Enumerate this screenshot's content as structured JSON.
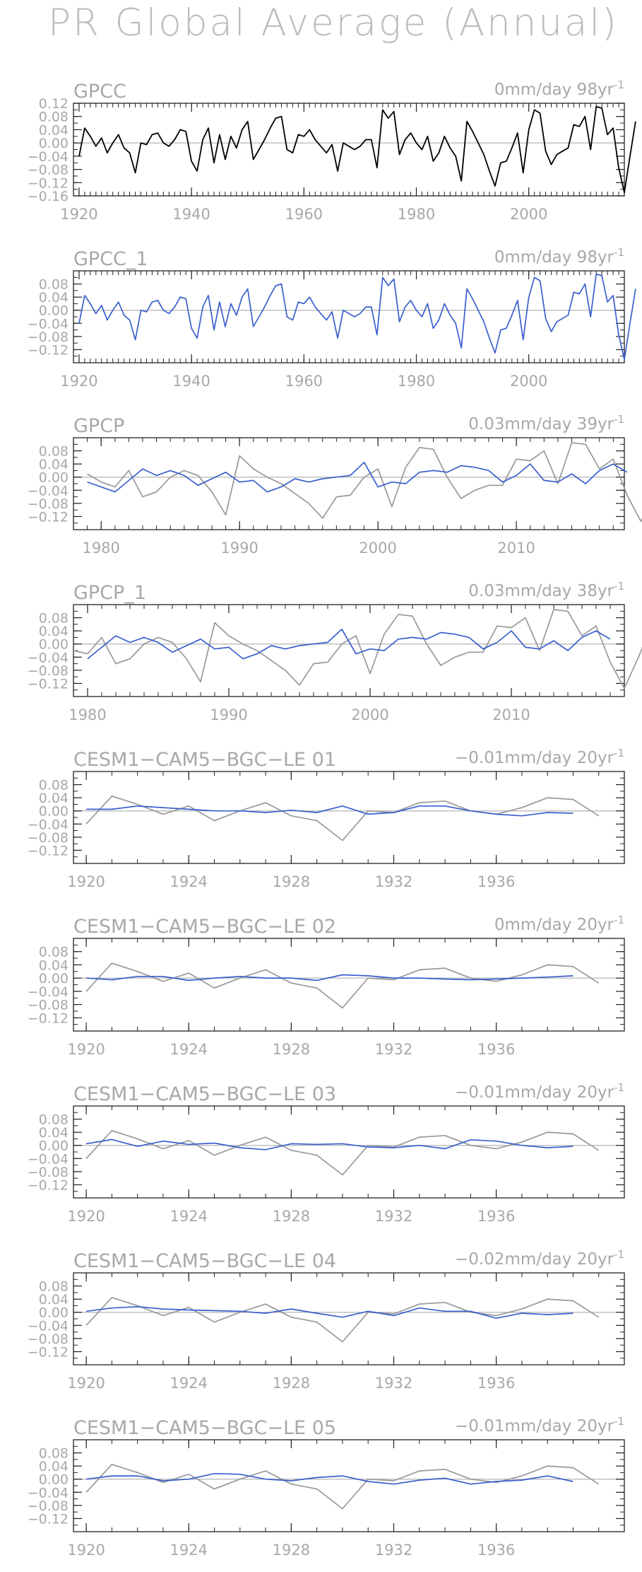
{
  "page": {
    "title": "PR Global Average (Annual)"
  },
  "chart_data": [
    {
      "type": "line",
      "title": "GPCC",
      "trend_label": "0mm/day 98yr",
      "trend_exp": "-1",
      "xlim": [
        1919,
        2017
      ],
      "ylim": [
        -0.16,
        0.12
      ],
      "xticks": [
        1920,
        1940,
        1960,
        1980,
        2000
      ],
      "yticks": [
        -0.16,
        -0.12,
        -0.08,
        -0.04,
        0.0,
        0.04,
        0.08,
        0.12
      ],
      "ytick_labels": [
        "−0.16",
        "−0.12",
        "−0.08",
        "−0.04",
        "0.00",
        "0.04",
        "0.08",
        "0.12"
      ],
      "series": [
        {
          "color": "#000000",
          "x_start": 1920,
          "values": [
            -0.04,
            0.045,
            0.02,
            -0.01,
            0.015,
            -0.03,
            0.0,
            0.025,
            -0.015,
            -0.03,
            -0.09,
            0.0,
            -0.005,
            0.025,
            0.03,
            0.0,
            -0.01,
            0.01,
            0.04,
            0.035,
            -0.055,
            -0.085,
            0.01,
            0.045,
            -0.06,
            0.025,
            -0.05,
            0.02,
            -0.015,
            0.04,
            0.065,
            -0.05,
            -0.02,
            0.01,
            0.045,
            0.075,
            0.08,
            -0.02,
            -0.03,
            0.025,
            0.02,
            0.04,
            0.01,
            -0.01,
            -0.03,
            -0.005,
            -0.085,
            0.0,
            -0.01,
            -0.02,
            -0.01,
            0.01,
            0.01,
            -0.075,
            0.1,
            0.075,
            0.095,
            -0.035,
            0.01,
            0.03,
            0.0,
            -0.02,
            0.02,
            -0.055,
            -0.03,
            0.02,
            -0.015,
            -0.04,
            -0.115,
            0.065,
            0.035,
            0.0,
            -0.035,
            -0.085,
            -0.13,
            -0.06,
            -0.055,
            -0.015,
            0.03,
            -0.09,
            0.04,
            0.1,
            0.09,
            -0.025,
            -0.065,
            -0.035,
            -0.025,
            -0.015,
            0.055,
            0.05,
            0.08,
            -0.02,
            0.11,
            0.105,
            0.025,
            0.045,
            -0.075,
            -0.15,
            -0.04,
            0.065
          ]
        }
      ]
    },
    {
      "type": "line",
      "title": "GPCC_1",
      "trend_label": "0mm/day 98yr",
      "trend_exp": "-1",
      "xlim": [
        1919,
        2017
      ],
      "ylim": [
        -0.16,
        0.12
      ],
      "xticks": [
        1920,
        1940,
        1960,
        1980,
        2000
      ],
      "yticks": [
        -0.12,
        -0.08,
        -0.04,
        0.0,
        0.04,
        0.08
      ],
      "ytick_labels": [
        "−0.12",
        "−0.08",
        "−0.04",
        "0.00",
        "0.04",
        "0.08"
      ],
      "series": [
        {
          "color": "#3a5fcd",
          "x_start": 1920,
          "values": [
            -0.04,
            0.045,
            0.02,
            -0.01,
            0.015,
            -0.03,
            0.0,
            0.025,
            -0.015,
            -0.03,
            -0.09,
            0.0,
            -0.005,
            0.025,
            0.03,
            0.0,
            -0.01,
            0.01,
            0.04,
            0.035,
            -0.055,
            -0.085,
            0.01,
            0.045,
            -0.06,
            0.025,
            -0.05,
            0.02,
            -0.015,
            0.04,
            0.065,
            -0.05,
            -0.02,
            0.01,
            0.045,
            0.075,
            0.08,
            -0.02,
            -0.03,
            0.025,
            0.02,
            0.04,
            0.01,
            -0.01,
            -0.03,
            -0.005,
            -0.085,
            0.0,
            -0.01,
            -0.02,
            -0.01,
            0.01,
            0.01,
            -0.075,
            0.1,
            0.075,
            0.095,
            -0.035,
            0.01,
            0.03,
            0.0,
            -0.02,
            0.02,
            -0.055,
            -0.03,
            0.02,
            -0.015,
            -0.04,
            -0.115,
            0.065,
            0.035,
            0.0,
            -0.035,
            -0.085,
            -0.13,
            -0.06,
            -0.055,
            -0.015,
            0.03,
            -0.09,
            0.04,
            0.1,
            0.09,
            -0.025,
            -0.065,
            -0.035,
            -0.025,
            -0.015,
            0.055,
            0.05,
            0.08,
            -0.02,
            0.11,
            0.105,
            0.025,
            0.045,
            -0.075,
            -0.15,
            -0.04,
            0.065
          ]
        }
      ]
    },
    {
      "type": "line",
      "title": "GPCP",
      "trend_label": "0.03mm/day 39yr",
      "trend_exp": "-1",
      "xlim": [
        1978,
        2017.8
      ],
      "ylim": [
        -0.16,
        0.12
      ],
      "xticks": [
        1980,
        1990,
        2000,
        2010
      ],
      "yticks": [
        -0.12,
        -0.08,
        -0.04,
        0.0,
        0.04,
        0.08
      ],
      "ytick_labels": [
        "−0.12",
        "−0.08",
        "−0.04",
        "0.00",
        "0.04",
        "0.08"
      ],
      "series": [
        {
          "color": "#999999",
          "x_start": 1979,
          "values": [
            0.01,
            -0.015,
            -0.03,
            0.02,
            -0.06,
            -0.045,
            0.0,
            0.02,
            0.005,
            -0.045,
            -0.115,
            0.065,
            0.025,
            0.0,
            -0.02,
            -0.05,
            -0.08,
            -0.125,
            -0.06,
            -0.055,
            0.0,
            0.025,
            -0.09,
            0.03,
            0.09,
            0.085,
            0.0,
            -0.065,
            -0.04,
            -0.025,
            -0.025,
            0.055,
            0.05,
            0.08,
            -0.02,
            0.105,
            0.1,
            0.025,
            0.055,
            -0.055,
            -0.135,
            -0.04,
            0.065
          ]
        },
        {
          "color": "#3a5fcd",
          "x_start": 1979,
          "values": [
            -0.015,
            -0.03,
            -0.045,
            -0.01,
            0.025,
            0.005,
            0.02,
            0.005,
            -0.025,
            -0.005,
            0.015,
            -0.015,
            -0.01,
            -0.045,
            -0.03,
            -0.005,
            -0.015,
            -0.005,
            0.0,
            0.005,
            0.045,
            -0.03,
            -0.015,
            -0.02,
            0.015,
            0.02,
            0.015,
            0.035,
            0.03,
            0.02,
            -0.015,
            0.005,
            0.04,
            -0.01,
            -0.015,
            0.01,
            -0.02,
            0.02,
            0.04,
            0.015
          ]
        }
      ]
    },
    {
      "type": "line",
      "title": "GPCP_1",
      "trend_label": "0.03mm/day 38yr",
      "trend_exp": "-1",
      "xlim": [
        1979,
        2018
      ],
      "ylim": [
        -0.16,
        0.12
      ],
      "xticks": [
        1980,
        1990,
        2000,
        2010
      ],
      "yticks": [
        -0.12,
        -0.08,
        -0.04,
        0.0,
        0.04,
        0.08
      ],
      "ytick_labels": [
        "−0.12",
        "−0.08",
        "−0.04",
        "0.00",
        "0.04",
        "0.08"
      ],
      "series": [
        {
          "color": "#999999",
          "x_start": 1979,
          "values": [
            -0.02,
            -0.03,
            0.02,
            -0.06,
            -0.045,
            0.0,
            0.02,
            0.005,
            -0.045,
            -0.115,
            0.065,
            0.025,
            0.0,
            -0.02,
            -0.05,
            -0.08,
            -0.125,
            -0.06,
            -0.055,
            0.0,
            0.025,
            -0.09,
            0.03,
            0.09,
            0.085,
            0.0,
            -0.065,
            -0.04,
            -0.025,
            -0.025,
            0.055,
            0.05,
            0.08,
            -0.02,
            0.105,
            0.1,
            0.025,
            0.055,
            -0.055,
            -0.135,
            -0.04,
            0.065
          ]
        },
        {
          "color": "#3a5fcd",
          "x_start": 1980,
          "values": [
            -0.045,
            -0.01,
            0.025,
            0.005,
            0.02,
            0.005,
            -0.025,
            -0.005,
            0.015,
            -0.015,
            -0.01,
            -0.045,
            -0.03,
            -0.005,
            -0.015,
            -0.005,
            0.0,
            0.005,
            0.045,
            -0.03,
            -0.015,
            -0.02,
            0.015,
            0.02,
            0.015,
            0.035,
            0.03,
            0.02,
            -0.015,
            0.005,
            0.04,
            -0.01,
            -0.015,
            0.01,
            -0.02,
            0.02,
            0.04,
            0.015
          ]
        }
      ]
    },
    {
      "type": "line",
      "title": "CESM1−CAM5−BGC−LE 01",
      "trend_label": "−0.01mm/day 20yr",
      "trend_exp": "-1",
      "xlim": [
        1919.5,
        1941
      ],
      "ylim": [
        -0.16,
        0.12
      ],
      "xticks": [
        1920,
        1924,
        1928,
        1932,
        1936
      ],
      "yticks": [
        -0.12,
        -0.08,
        -0.04,
        0.0,
        0.04,
        0.08
      ],
      "ytick_labels": [
        "−0.12",
        "−0.08",
        "−0.04",
        "0.00",
        "0.04",
        "0.08"
      ],
      "series": [
        {
          "color": "#999999",
          "x_start": 1920,
          "values": [
            -0.04,
            0.045,
            0.02,
            -0.01,
            0.015,
            -0.03,
            0.0,
            0.025,
            -0.015,
            -0.03,
            -0.09,
            0.0,
            -0.005,
            0.025,
            0.03,
            0.0,
            -0.01,
            0.01,
            0.04,
            0.035,
            -0.015
          ]
        },
        {
          "color": "#3a5fcd",
          "x_start": 1920,
          "values": [
            0.005,
            0.005,
            0.015,
            0.01,
            0.005,
            0.0,
            0.0,
            -0.005,
            0.002,
            -0.005,
            0.015,
            -0.01,
            -0.005,
            0.015,
            0.015,
            0.0,
            -0.01,
            -0.015,
            -0.005,
            -0.007
          ]
        }
      ]
    },
    {
      "type": "line",
      "title": "CESM1−CAM5−BGC−LE 02",
      "trend_label": "0mm/day 20yr",
      "trend_exp": "-1",
      "xlim": [
        1919.5,
        1941
      ],
      "ylim": [
        -0.16,
        0.12
      ],
      "xticks": [
        1920,
        1924,
        1928,
        1932,
        1936
      ],
      "yticks": [
        -0.12,
        -0.08,
        -0.04,
        0.0,
        0.04,
        0.08
      ],
      "ytick_labels": [
        "−0.12",
        "−0.08",
        "−0.04",
        "0.00",
        "0.04",
        "0.08"
      ],
      "series": [
        {
          "color": "#999999",
          "x_start": 1920,
          "values": [
            -0.04,
            0.045,
            0.02,
            -0.01,
            0.015,
            -0.03,
            0.0,
            0.025,
            -0.015,
            -0.03,
            -0.09,
            0.0,
            -0.005,
            0.025,
            0.03,
            0.0,
            -0.01,
            0.01,
            0.04,
            0.035,
            -0.015
          ]
        },
        {
          "color": "#3a5fcd",
          "x_start": 1920,
          "values": [
            0.0,
            -0.005,
            0.005,
            0.005,
            -0.007,
            0.0,
            0.005,
            0.0,
            0.0,
            -0.007,
            0.01,
            0.007,
            0.0,
            0.0,
            -0.003,
            -0.005,
            -0.003,
            0.0,
            0.003,
            0.007
          ]
        }
      ]
    },
    {
      "type": "line",
      "title": "CESM1−CAM5−BGC−LE 03",
      "trend_label": "−0.01mm/day 20yr",
      "trend_exp": "-1",
      "xlim": [
        1919.5,
        1941
      ],
      "ylim": [
        -0.16,
        0.12
      ],
      "xticks": [
        1920,
        1924,
        1928,
        1932,
        1936
      ],
      "yticks": [
        -0.12,
        -0.08,
        -0.04,
        0.0,
        0.04,
        0.08
      ],
      "ytick_labels": [
        "−0.12",
        "−0.08",
        "−0.04",
        "0.00",
        "0.04",
        "0.08"
      ],
      "series": [
        {
          "color": "#999999",
          "x_start": 1920,
          "values": [
            -0.04,
            0.045,
            0.02,
            -0.01,
            0.015,
            -0.03,
            0.0,
            0.025,
            -0.015,
            -0.03,
            -0.09,
            0.0,
            -0.005,
            0.025,
            0.03,
            0.0,
            -0.01,
            0.01,
            0.04,
            0.035,
            -0.015
          ]
        },
        {
          "color": "#3a5fcd",
          "x_start": 1920,
          "values": [
            0.005,
            0.018,
            -0.003,
            0.013,
            0.003,
            0.007,
            -0.007,
            -0.013,
            0.005,
            0.003,
            0.005,
            -0.005,
            -0.007,
            0.0,
            -0.01,
            0.017,
            0.013,
            0.0,
            -0.007,
            -0.003
          ]
        }
      ]
    },
    {
      "type": "line",
      "title": "CESM1−CAM5−BGC−LE 04",
      "trend_label": "−0.02mm/day 20yr",
      "trend_exp": "-1",
      "xlim": [
        1919.5,
        1941
      ],
      "ylim": [
        -0.16,
        0.12
      ],
      "xticks": [
        1920,
        1924,
        1928,
        1932,
        1936
      ],
      "yticks": [
        -0.12,
        -0.08,
        -0.04,
        0.0,
        0.04,
        0.08
      ],
      "ytick_labels": [
        "−0.12",
        "−0.08",
        "−0.04",
        "0.00",
        "0.04",
        "0.08"
      ],
      "series": [
        {
          "color": "#999999",
          "x_start": 1920,
          "values": [
            -0.04,
            0.045,
            0.02,
            -0.01,
            0.015,
            -0.03,
            0.0,
            0.025,
            -0.015,
            -0.03,
            -0.09,
            0.0,
            -0.005,
            0.025,
            0.03,
            0.0,
            -0.01,
            0.01,
            0.04,
            0.035,
            -0.015
          ]
        },
        {
          "color": "#3a5fcd",
          "x_start": 1920,
          "values": [
            0.003,
            0.013,
            0.017,
            0.01,
            0.007,
            0.005,
            0.003,
            -0.003,
            0.01,
            -0.003,
            -0.015,
            0.003,
            -0.01,
            0.013,
            0.003,
            0.003,
            -0.018,
            -0.003,
            -0.007,
            -0.003
          ]
        }
      ]
    },
    {
      "type": "line",
      "title": "CESM1−CAM5−BGC−LE 05",
      "trend_label": "−0.01mm/day 20yr",
      "trend_exp": "-1",
      "xlim": [
        1919.5,
        1941
      ],
      "ylim": [
        -0.16,
        0.12
      ],
      "xticks": [
        1920,
        1924,
        1928,
        1932,
        1936
      ],
      "yticks": [
        -0.12,
        -0.08,
        -0.04,
        0.0,
        0.04,
        0.08
      ],
      "ytick_labels": [
        "−0.12",
        "−0.08",
        "−0.04",
        "0.00",
        "0.04",
        "0.08"
      ],
      "series": [
        {
          "color": "#999999",
          "x_start": 1920,
          "values": [
            -0.04,
            0.045,
            0.02,
            -0.01,
            0.015,
            -0.03,
            0.0,
            0.025,
            -0.015,
            -0.03,
            -0.09,
            0.0,
            -0.005,
            0.025,
            0.03,
            0.0,
            -0.01,
            0.01,
            0.04,
            0.035,
            -0.015
          ]
        },
        {
          "color": "#3a5fcd",
          "x_start": 1920,
          "values": [
            0.0,
            0.01,
            0.01,
            -0.005,
            0.0,
            0.017,
            0.015,
            0.0,
            -0.005,
            0.005,
            0.01,
            -0.007,
            -0.015,
            -0.003,
            0.003,
            -0.015,
            -0.007,
            -0.003,
            0.01,
            -0.007
          ]
        }
      ]
    }
  ]
}
